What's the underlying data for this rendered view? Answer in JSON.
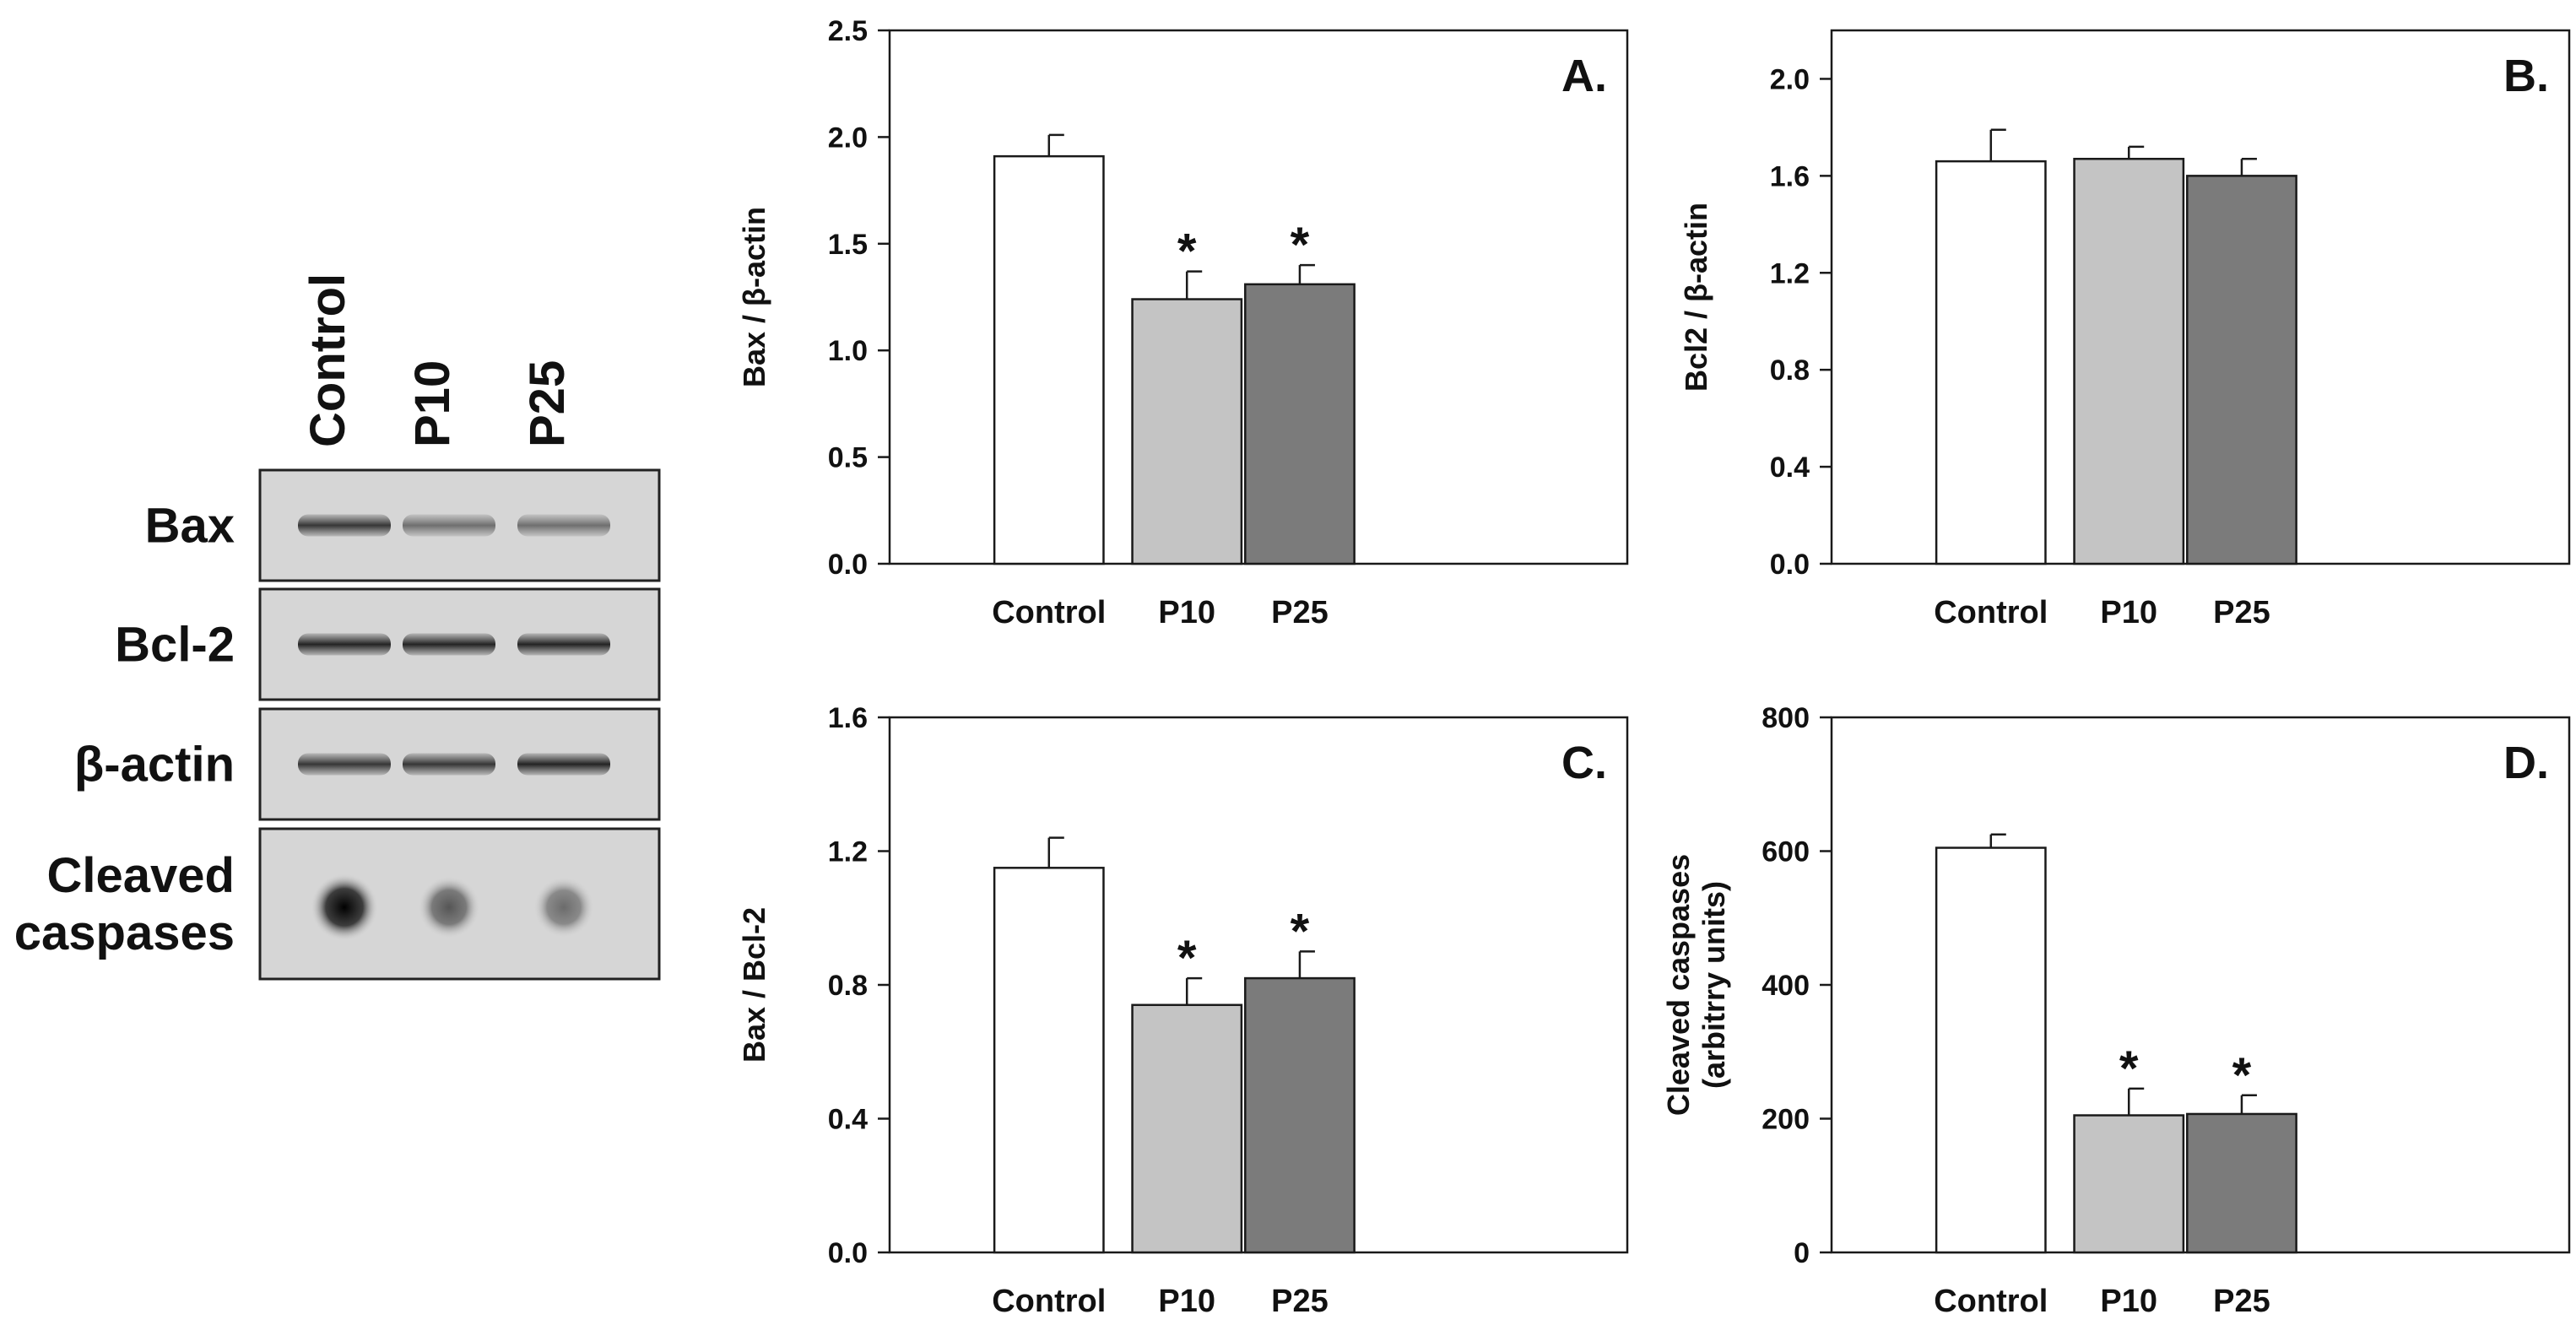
{
  "blot": {
    "lanes": [
      "Control",
      "P10",
      "P25"
    ],
    "rows": [
      {
        "label_lines": [
          "Bax"
        ],
        "kind": "band",
        "intensity": [
          0.85,
          0.55,
          0.55
        ]
      },
      {
        "label_lines": [
          "Bcl-2"
        ],
        "kind": "band",
        "intensity": [
          0.95,
          0.95,
          0.95
        ]
      },
      {
        "label_lines": [
          "β-actin"
        ],
        "kind": "band",
        "intensity": [
          0.85,
          0.85,
          0.95
        ]
      },
      {
        "label_lines": [
          "Cleaved",
          "caspases"
        ],
        "kind": "dot",
        "intensity": [
          1.0,
          0.6,
          0.5
        ]
      }
    ],
    "colors": {
      "frame_bg": "#d6d6d6",
      "band": "#2a2a2a"
    }
  },
  "chart_data": [
    {
      "type": "bar",
      "panel_label": "A.",
      "ylabel_lines": [
        "Bax / β-actin"
      ],
      "categories": [
        "Control",
        "P10",
        "P25"
      ],
      "values": [
        1.91,
        1.24,
        1.31
      ],
      "errors": [
        0.1,
        0.13,
        0.09
      ],
      "significant": [
        false,
        true,
        true
      ],
      "sig_marker": "*",
      "ylim": [
        0,
        2.5
      ],
      "yticks": [
        "0.0",
        "0.5",
        "1.0",
        "1.5",
        "2.0",
        "2.5"
      ],
      "grid": false
    },
    {
      "type": "bar",
      "panel_label": "B.",
      "ylabel_lines": [
        "Bcl2 / β-actin"
      ],
      "categories": [
        "Control",
        "P10",
        "P25"
      ],
      "values": [
        1.66,
        1.67,
        1.6
      ],
      "errors": [
        0.13,
        0.05,
        0.07
      ],
      "significant": [
        false,
        false,
        false
      ],
      "sig_marker": "*",
      "ylim": [
        0,
        2.2
      ],
      "yticks": [
        "0.0",
        "0.4",
        "0.8",
        "1.2",
        "1.6",
        "2.0"
      ],
      "grid": false
    },
    {
      "type": "bar",
      "panel_label": "C.",
      "ylabel_lines": [
        "Bax / Bcl-2"
      ],
      "categories": [
        "Control",
        "P10",
        "P25"
      ],
      "values": [
        1.15,
        0.74,
        0.82
      ],
      "errors": [
        0.09,
        0.08,
        0.08
      ],
      "significant": [
        false,
        true,
        true
      ],
      "sig_marker": "*",
      "ylim": [
        0,
        1.6
      ],
      "yticks": [
        "0.0",
        "0.4",
        "0.8",
        "1.2",
        "1.6"
      ],
      "grid": false
    },
    {
      "type": "bar",
      "panel_label": "D.",
      "ylabel_lines": [
        "Cleaved caspases",
        "(arbitrry units)"
      ],
      "categories": [
        "Control",
        "P10",
        "P25"
      ],
      "values": [
        605,
        205,
        207
      ],
      "errors": [
        20,
        40,
        28
      ],
      "significant": [
        false,
        true,
        true
      ],
      "sig_marker": "*",
      "ylim": [
        0,
        800
      ],
      "yticks": [
        "0",
        "200",
        "400",
        "600",
        "800"
      ],
      "grid": false
    }
  ],
  "colors": {
    "bars": [
      "#ffffff",
      "#c4c4c4",
      "#7b7b7b"
    ],
    "bar_stroke": "#1a1a1a",
    "axis": "#1a1a1a"
  }
}
